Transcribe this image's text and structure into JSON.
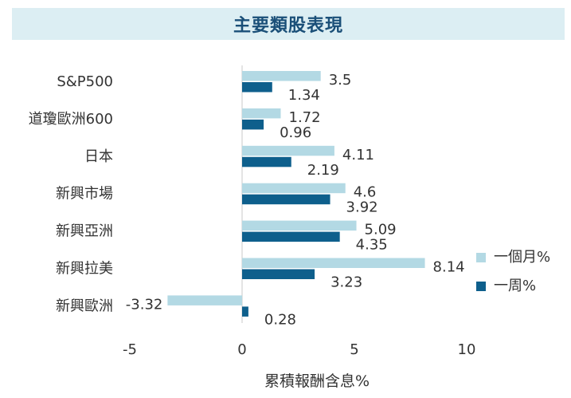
{
  "chart_data": {
    "type": "bar",
    "orientation": "horizontal",
    "title": "主要類股表現",
    "xlabel": "累積報酬含息%",
    "ylabel": "",
    "categories": [
      "S&P500",
      "道瓊歐洲600",
      "日本",
      "新興市場",
      "新興亞洲",
      "新興拉美",
      "新興歐洲"
    ],
    "series": [
      {
        "name": "一個月%",
        "color": "#b3d9e4",
        "values": [
          3.5,
          1.72,
          4.11,
          4.6,
          5.09,
          8.14,
          -3.32
        ],
        "labels": [
          "3.5",
          "1.72",
          "4.11",
          "4.6",
          "5.09",
          "8.14",
          "-3.32"
        ]
      },
      {
        "name": "一周%",
        "color": "#0e5f8c",
        "values": [
          1.34,
          0.96,
          2.19,
          3.92,
          4.35,
          3.23,
          0.28
        ],
        "labels": [
          "1.34",
          "0.96",
          "2.19",
          "3.92",
          "4.35",
          "3.23",
          "0.28"
        ]
      }
    ],
    "xlim": [
      -5,
      15
    ],
    "xticks": [
      -5,
      0,
      5,
      10
    ],
    "xtick_labels": [
      "-5",
      "0",
      "5",
      "10"
    ],
    "legend_position": "right",
    "grid": false
  }
}
